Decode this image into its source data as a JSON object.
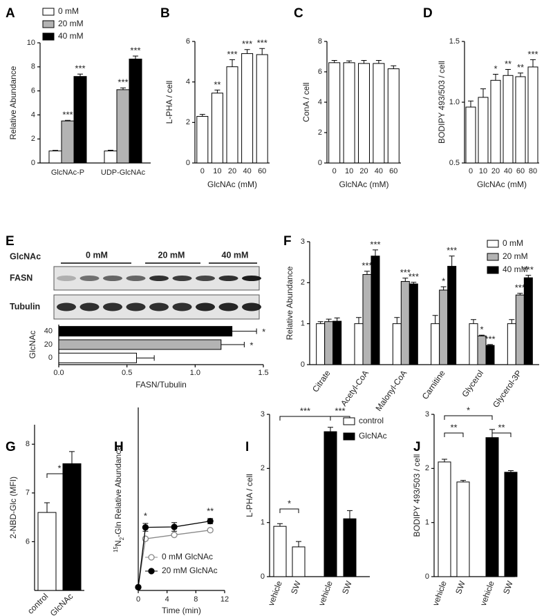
{
  "chart_data": [
    {
      "type": "bar",
      "panel": "A",
      "ylabel": "Relative Abundance",
      "categories": [
        "GlcNAc-P",
        "UDP-GlcNAc"
      ],
      "series": [
        {
          "name": "0 mM",
          "color": "#ffffff",
          "values": [
            1.0,
            1.0
          ],
          "errors": [
            0.05,
            0.06
          ]
        },
        {
          "name": "20 mM",
          "color": "#b3b3b3",
          "values": [
            3.5,
            6.1
          ],
          "errors": [
            0.05,
            0.15
          ],
          "annotations": [
            "***",
            "***"
          ]
        },
        {
          "name": "40 mM",
          "color": "#000000",
          "values": [
            7.2,
            8.65
          ],
          "errors": [
            0.2,
            0.25
          ],
          "annotations": [
            "***",
            "***"
          ]
        }
      ],
      "ylim": [
        0,
        10
      ],
      "yticks": [
        0,
        2,
        4,
        6,
        8,
        10
      ],
      "legend": "upper left"
    },
    {
      "type": "bar",
      "panel": "B",
      "ylabel": "L-PHA / cell",
      "xlabel": "GlcNAc (mM)",
      "categories": [
        "0",
        "10",
        "20",
        "40",
        "60"
      ],
      "values": [
        2.3,
        3.45,
        4.75,
        5.4,
        5.35
      ],
      "errors": [
        0.1,
        0.15,
        0.35,
        0.2,
        0.3
      ],
      "annotations": [
        null,
        "**",
        "***",
        "***",
        "***"
      ],
      "color": "#ffffff",
      "ylim": [
        0,
        6
      ],
      "yticks": [
        0,
        2,
        4,
        6
      ]
    },
    {
      "type": "bar",
      "panel": "C",
      "ylabel": "ConA / cell",
      "xlabel": "GlcNAc (mM)",
      "categories": [
        "0",
        "10",
        "20",
        "40",
        "60"
      ],
      "values": [
        6.6,
        6.6,
        6.55,
        6.55,
        6.2
      ],
      "errors": [
        0.15,
        0.12,
        0.2,
        0.2,
        0.2
      ],
      "color": "#ffffff",
      "ylim": [
        0,
        8
      ],
      "yticks": [
        0,
        2,
        4,
        6,
        8
      ]
    },
    {
      "type": "bar",
      "panel": "D",
      "ylabel": "BODIPY 493/503 / cell",
      "xlabel": "GlcNAc (mM)",
      "categories": [
        "0",
        "10",
        "20",
        "40",
        "60",
        "80"
      ],
      "values": [
        0.96,
        1.04,
        1.18,
        1.22,
        1.21,
        1.29
      ],
      "errors": [
        0.05,
        0.07,
        0.05,
        0.05,
        0.03,
        0.06
      ],
      "annotations": [
        null,
        null,
        "*",
        "**",
        "**",
        "***"
      ],
      "color": "#ffffff",
      "ylim": [
        0.5,
        1.5
      ],
      "yticks": [
        0.5,
        {
          "value": 1,
          "label": "1.0"
        },
        1.5
      ]
    },
    {
      "type": "barh",
      "panel": "E",
      "blot": {
        "treatment": "GlcNAc",
        "groups": [
          "0 mM",
          "20 mM",
          "40 mM"
        ],
        "rows": [
          "FASN",
          "Tubulin"
        ]
      },
      "ylabel": "GlcNAc",
      "xlabel": "FASN/Tubulin",
      "categories": [
        "40",
        "20",
        "0"
      ],
      "values": [
        1.27,
        1.19,
        0.57
      ],
      "errors": [
        0.18,
        0.17,
        0.13
      ],
      "annotations": [
        "*",
        "*",
        null
      ],
      "colors": [
        "#000000",
        "#b3b3b3",
        "#ffffff"
      ],
      "xlim": [
        0,
        1.5
      ],
      "xticks": [
        {
          "value": 0,
          "label": "0.0"
        },
        0.5,
        {
          "value": 1,
          "label": "1.0"
        },
        1.5
      ]
    },
    {
      "type": "bar",
      "panel": "F",
      "ylabel": "Relative Abundance",
      "categories": [
        "Citrate",
        "Acetyl-CoA",
        "Malonyl-CoA",
        "Carnitine",
        "Glycerol",
        "Glycerol-3P"
      ],
      "series": [
        {
          "name": "0 mM",
          "color": "#ffffff",
          "values": [
            1,
            1,
            1,
            1,
            1,
            1
          ],
          "errors": [
            0.05,
            0.15,
            0.15,
            0.2,
            0.1,
            0.1
          ]
        },
        {
          "name": "20 mM",
          "color": "#b3b3b3",
          "values": [
            1.05,
            2.2,
            2.03,
            1.82,
            0.7,
            1.7
          ],
          "errors": [
            0.06,
            0.08,
            0.08,
            0.08,
            0.02,
            0.04
          ],
          "annotations": [
            null,
            "***",
            "***",
            "*",
            "*",
            "***"
          ]
        },
        {
          "name": "40 mM",
          "color": "#000000",
          "values": [
            1.06,
            2.65,
            1.97,
            2.4,
            0.47,
            2.12
          ],
          "errors": [
            0.08,
            0.15,
            0.04,
            0.25,
            0.02,
            0.06
          ],
          "annotations": [
            null,
            "***",
            "***",
            "***",
            "***",
            "***"
          ]
        }
      ],
      "ylim": [
        0,
        3
      ],
      "yticks": [
        0,
        1,
        2,
        3
      ],
      "legend": "upper right"
    },
    {
      "type": "bar",
      "panel": "G",
      "ylabel": "2-NBD-Glc (MFI)",
      "categories": [
        "control",
        "GlcNAc"
      ],
      "values": [
        6.6,
        7.6
      ],
      "errors": [
        0.2,
        0.25
      ],
      "colors": [
        "#ffffff",
        "#000000"
      ],
      "ylim": [
        5,
        8.4
      ],
      "yticks": [
        6,
        7,
        8
      ],
      "comparisons": [
        "*"
      ]
    },
    {
      "type": "line",
      "panel": "H",
      "ylabel": {
        "sup": "15",
        "base": "N",
        "sub": "2",
        "rest": "-Gln Relative Abundance"
      },
      "xlabel": "Time (min)",
      "x": [
        0,
        1,
        5,
        10
      ],
      "series": [
        {
          "name": "0 mM GlcNAc",
          "color": "#888888",
          "fill": "#ffffff",
          "values": [
            1.5,
            24,
            25.8,
            28
          ],
          "errors": [
            0.3,
            0.8,
            0.6,
            0.6
          ]
        },
        {
          "name": "20 mM GlcNAc",
          "color": "#000000",
          "fill": "#000000",
          "values": [
            1.5,
            29.3,
            29.5,
            32.2
          ],
          "errors": [
            0.3,
            1.8,
            2,
            1.2
          ],
          "annotations": [
            null,
            "*",
            null,
            "**"
          ]
        }
      ],
      "xlim": [
        0,
        12
      ],
      "xticks": [
        0,
        4,
        8,
        12
      ],
      "ylim": [
        0,
        85
      ],
      "legend": "lower right"
    },
    {
      "type": "bar",
      "panel": "I",
      "ylabel": "L-PHA / cell",
      "categories": [
        "vehicle",
        "SW",
        "vehicle",
        "SW"
      ],
      "series": [
        {
          "name": "control",
          "color": "#ffffff",
          "values": [
            0.93,
            0.55,
            null,
            null
          ],
          "errors": [
            0.05,
            0.1,
            null,
            null
          ]
        },
        {
          "name": "GlcNAc",
          "color": "#000000",
          "values": [
            null,
            null,
            2.68,
            1.07
          ],
          "errors": [
            null,
            null,
            0.08,
            0.15
          ]
        }
      ],
      "ylim": [
        0,
        3
      ],
      "yticks": [
        0,
        1,
        2,
        3
      ],
      "legend": "upper right",
      "comparisons": [
        "*",
        "***",
        "***"
      ]
    },
    {
      "type": "bar",
      "panel": "J",
      "ylabel": "BODIPY 493/503 / cell",
      "categories": [
        "vehicle",
        "SW",
        "vehicle",
        "SW"
      ],
      "values": [
        2.12,
        1.75,
        2.57,
        1.93
      ],
      "errors": [
        0.05,
        0.03,
        0.15,
        0.03
      ],
      "colors": [
        "#ffffff",
        "#ffffff",
        "#000000",
        "#000000"
      ],
      "ylim": [
        0,
        3
      ],
      "yticks": [
        0,
        1,
        2,
        3
      ],
      "comparisons": [
        "**",
        "*",
        "**"
      ]
    }
  ]
}
